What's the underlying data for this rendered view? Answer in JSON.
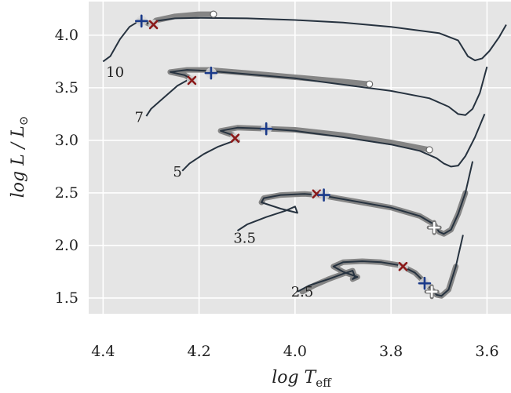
{
  "chart_data": {
    "type": "line",
    "title": "",
    "xlabel": "log T",
    "xlabel_sub": "eff",
    "ylabel": "log L / L",
    "ylabel_sub": "⊙",
    "xlim": [
      4.43,
      3.55
    ],
    "ylim": [
      1.35,
      4.32
    ],
    "x_inverted": true,
    "grid": true,
    "background": "#e5e5e5",
    "xticks": [
      {
        "value": 4.4,
        "label": "4.4"
      },
      {
        "value": 4.2,
        "label": "4.2"
      },
      {
        "value": 4.0,
        "label": "4.0"
      },
      {
        "value": 3.8,
        "label": "3.8"
      },
      {
        "value": 3.6,
        "label": "3.6"
      }
    ],
    "yticks": [
      {
        "value": 1.5,
        "label": "1.5"
      },
      {
        "value": 2.0,
        "label": "2.0"
      },
      {
        "value": 2.5,
        "label": "2.5"
      },
      {
        "value": 3.0,
        "label": "3.0"
      },
      {
        "value": 3.5,
        "label": "3.5"
      },
      {
        "value": 4.0,
        "label": "4.0"
      }
    ],
    "track_color": "#26323f",
    "highlight_color": "#7a7a7a",
    "series": [
      {
        "mass_label": "10",
        "label_pos": [
          4.375,
          3.65
        ],
        "track": [
          [
            4.4,
            3.75
          ],
          [
            4.385,
            3.8
          ],
          [
            4.365,
            3.96
          ],
          [
            4.345,
            4.08
          ],
          [
            4.325,
            4.135
          ],
          [
            4.31,
            4.12
          ],
          [
            4.3,
            4.1
          ],
          [
            4.29,
            4.135
          ],
          [
            4.25,
            4.16
          ],
          [
            4.2,
            4.165
          ],
          [
            4.1,
            4.16
          ],
          [
            4.0,
            4.145
          ],
          [
            3.9,
            4.12
          ],
          [
            3.8,
            4.08
          ],
          [
            3.7,
            4.02
          ],
          [
            3.66,
            3.95
          ],
          [
            3.64,
            3.8
          ],
          [
            3.625,
            3.76
          ],
          [
            3.61,
            3.78
          ],
          [
            3.595,
            3.85
          ],
          [
            3.575,
            3.98
          ],
          [
            3.56,
            4.1
          ]
        ],
        "highlight": [
          [
            4.325,
            4.135
          ],
          [
            4.31,
            4.12
          ],
          [
            4.3,
            4.1
          ],
          [
            4.29,
            4.14
          ],
          [
            4.25,
            4.18
          ],
          [
            4.2,
            4.2
          ],
          [
            4.17,
            4.2
          ]
        ],
        "end_marker": [
          4.17,
          4.2
        ],
        "plus": [
          4.32,
          4.135
        ],
        "cross": [
          4.295,
          4.1
        ]
      },
      {
        "mass_label": "7",
        "label_pos": [
          4.325,
          3.22
        ],
        "track": [
          [
            4.31,
            3.23
          ],
          [
            4.3,
            3.3
          ],
          [
            4.27,
            3.42
          ],
          [
            4.245,
            3.52
          ],
          [
            4.225,
            3.57
          ],
          [
            4.215,
            3.58
          ],
          [
            4.23,
            3.62
          ],
          [
            4.26,
            3.65
          ],
          [
            4.225,
            3.67
          ],
          [
            4.18,
            3.66
          ],
          [
            4.1,
            3.63
          ],
          [
            4.0,
            3.59
          ],
          [
            3.9,
            3.53
          ],
          [
            3.8,
            3.47
          ],
          [
            3.72,
            3.4
          ],
          [
            3.68,
            3.32
          ],
          [
            3.66,
            3.25
          ],
          [
            3.645,
            3.24
          ],
          [
            3.63,
            3.3
          ],
          [
            3.615,
            3.45
          ],
          [
            3.6,
            3.7
          ]
        ],
        "highlight": [
          [
            4.215,
            3.58
          ],
          [
            4.23,
            3.62
          ],
          [
            4.26,
            3.65
          ],
          [
            4.225,
            3.67
          ],
          [
            4.18,
            3.67
          ],
          [
            4.1,
            3.64
          ],
          [
            4.0,
            3.6
          ],
          [
            3.9,
            3.56
          ],
          [
            3.845,
            3.535
          ]
        ],
        "end_marker": [
          3.845,
          3.535
        ],
        "plus": [
          4.175,
          3.64
        ],
        "cross": [
          4.215,
          3.57
        ]
      },
      {
        "mass_label": "5",
        "label_pos": [
          4.245,
          2.7
        ],
        "track": [
          [
            4.235,
            2.71
          ],
          [
            4.22,
            2.78
          ],
          [
            4.19,
            2.87
          ],
          [
            4.16,
            2.94
          ],
          [
            4.13,
            2.99
          ],
          [
            4.12,
            3.0
          ],
          [
            4.13,
            3.05
          ],
          [
            4.155,
            3.09
          ],
          [
            4.12,
            3.12
          ],
          [
            4.06,
            3.11
          ],
          [
            4.0,
            3.09
          ],
          [
            3.9,
            3.03
          ],
          [
            3.8,
            2.96
          ],
          [
            3.74,
            2.9
          ],
          [
            3.705,
            2.83
          ],
          [
            3.69,
            2.78
          ],
          [
            3.675,
            2.75
          ],
          [
            3.66,
            2.76
          ],
          [
            3.645,
            2.85
          ],
          [
            3.625,
            3.03
          ],
          [
            3.605,
            3.25
          ]
        ],
        "highlight": [
          [
            4.12,
            3.0
          ],
          [
            4.13,
            3.05
          ],
          [
            4.155,
            3.09
          ],
          [
            4.12,
            3.12
          ],
          [
            4.06,
            3.11
          ],
          [
            4.0,
            3.1
          ],
          [
            3.9,
            3.05
          ],
          [
            3.8,
            2.98
          ],
          [
            3.72,
            2.91
          ]
        ],
        "end_marker": [
          3.72,
          2.91
        ],
        "plus": [
          4.06,
          3.11
        ],
        "cross": [
          4.125,
          3.02
        ]
      },
      {
        "mass_label": "3.5",
        "label_pos": [
          4.105,
          2.07
        ],
        "track": [
          [
            4.12,
            2.14
          ],
          [
            4.1,
            2.2
          ],
          [
            4.06,
            2.27
          ],
          [
            4.02,
            2.33
          ],
          [
            4.0,
            2.37
          ],
          [
            3.995,
            2.31
          ],
          [
            4.03,
            2.35
          ],
          [
            4.07,
            2.41
          ],
          [
            4.065,
            2.45
          ],
          [
            4.03,
            2.48
          ],
          [
            3.98,
            2.49
          ],
          [
            3.95,
            2.48
          ],
          [
            3.9,
            2.44
          ],
          [
            3.8,
            2.36
          ],
          [
            3.74,
            2.28
          ],
          [
            3.71,
            2.2
          ],
          [
            3.7,
            2.13
          ],
          [
            3.69,
            2.11
          ],
          [
            3.675,
            2.15
          ],
          [
            3.66,
            2.3
          ],
          [
            3.645,
            2.5
          ],
          [
            3.63,
            2.8
          ]
        ],
        "highlight": [
          [
            4.07,
            2.41
          ],
          [
            4.065,
            2.45
          ],
          [
            4.03,
            2.48
          ],
          [
            3.98,
            2.49
          ],
          [
            3.95,
            2.48
          ],
          [
            3.9,
            2.44
          ],
          [
            3.8,
            2.36
          ],
          [
            3.74,
            2.28
          ],
          [
            3.71,
            2.2
          ],
          [
            3.7,
            2.13
          ],
          [
            3.69,
            2.11
          ],
          [
            3.675,
            2.15
          ],
          [
            3.66,
            2.3
          ],
          [
            3.645,
            2.5
          ]
        ],
        "end_marker": null,
        "plus": [
          3.94,
          2.48
        ],
        "cross": [
          3.955,
          2.49
        ],
        "white_plus": [
          3.71,
          2.17
        ]
      },
      {
        "mass_label": "2.5",
        "label_pos": [
          3.985,
          1.56
        ],
        "track": [
          [
            3.995,
            1.56
          ],
          [
            3.97,
            1.62
          ],
          [
            3.93,
            1.68
          ],
          [
            3.9,
            1.73
          ],
          [
            3.88,
            1.76
          ],
          [
            3.875,
            1.7
          ],
          [
            3.88,
            1.68
          ],
          [
            3.87,
            1.7
          ],
          [
            3.9,
            1.75
          ],
          [
            3.92,
            1.8
          ],
          [
            3.9,
            1.84
          ],
          [
            3.86,
            1.85
          ],
          [
            3.82,
            1.84
          ],
          [
            3.78,
            1.81
          ],
          [
            3.75,
            1.74
          ],
          [
            3.73,
            1.65
          ],
          [
            3.715,
            1.58
          ],
          [
            3.705,
            1.53
          ],
          [
            3.695,
            1.52
          ],
          [
            3.68,
            1.58
          ],
          [
            3.665,
            1.8
          ],
          [
            3.65,
            2.1
          ]
        ],
        "highlight": [
          [
            3.985,
            1.56
          ],
          [
            3.96,
            1.62
          ],
          [
            3.93,
            1.68
          ],
          [
            3.9,
            1.73
          ],
          [
            3.88,
            1.76
          ],
          [
            3.875,
            1.7
          ],
          [
            3.88,
            1.68
          ],
          [
            3.87,
            1.7
          ],
          [
            3.9,
            1.75
          ],
          [
            3.92,
            1.8
          ],
          [
            3.9,
            1.84
          ],
          [
            3.86,
            1.85
          ],
          [
            3.82,
            1.84
          ],
          [
            3.78,
            1.81
          ],
          [
            3.75,
            1.74
          ],
          [
            3.73,
            1.65
          ],
          [
            3.715,
            1.58
          ],
          [
            3.705,
            1.53
          ],
          [
            3.695,
            1.52
          ],
          [
            3.68,
            1.58
          ],
          [
            3.665,
            1.8
          ]
        ],
        "end_marker": null,
        "plus": [
          3.73,
          1.64
        ],
        "cross": [
          3.775,
          1.8
        ],
        "white_plus": [
          3.715,
          1.56
        ]
      }
    ]
  }
}
